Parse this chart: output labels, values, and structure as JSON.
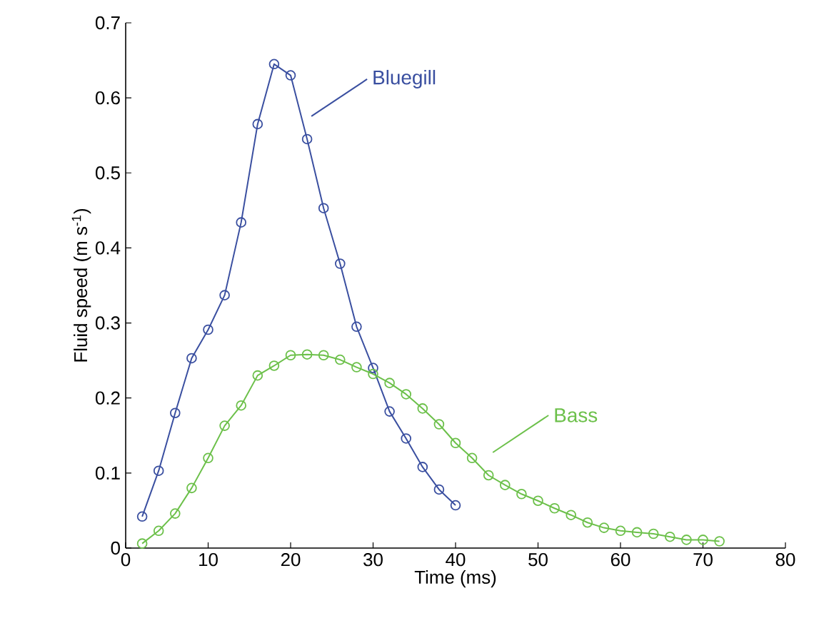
{
  "chart_data": {
    "type": "line",
    "xlabel": "Time (ms)",
    "ylabel": "Fluid speed (m s$^{-1}$)",
    "xlim": [
      0,
      80
    ],
    "ylim": [
      0,
      0.7
    ],
    "xticks": [
      0,
      10,
      20,
      30,
      40,
      50,
      60,
      70,
      80
    ],
    "yticks": [
      0,
      0.1,
      0.2,
      0.3,
      0.4,
      0.5,
      0.6,
      0.7
    ],
    "grid": false,
    "legend": false,
    "marker": "circle",
    "line_style": "solid",
    "series": [
      {
        "name": "Bluegill",
        "color": "#3a4fa0",
        "x": [
          2,
          4,
          6,
          8,
          10,
          12,
          14,
          16,
          18,
          20,
          22,
          24,
          26,
          28,
          30,
          32,
          34,
          36,
          38,
          40
        ],
        "values": [
          0.042,
          0.103,
          0.18,
          0.253,
          0.291,
          0.337,
          0.434,
          0.565,
          0.645,
          0.63,
          0.545,
          0.453,
          0.379,
          0.295,
          0.24,
          0.182,
          0.146,
          0.108,
          0.078,
          0.057
        ]
      },
      {
        "name": "Bass",
        "color": "#6cc04a",
        "x": [
          2,
          4,
          6,
          8,
          10,
          12,
          14,
          16,
          18,
          20,
          22,
          24,
          26,
          28,
          30,
          32,
          34,
          36,
          38,
          40,
          42,
          44,
          46,
          48,
          50,
          52,
          54,
          56,
          58,
          60,
          62,
          64,
          66,
          68,
          70,
          72
        ],
        "values": [
          0.006,
          0.023,
          0.046,
          0.08,
          0.12,
          0.163,
          0.19,
          0.23,
          0.243,
          0.257,
          0.258,
          0.257,
          0.251,
          0.241,
          0.232,
          0.22,
          0.205,
          0.186,
          0.165,
          0.14,
          0.12,
          0.097,
          0.084,
          0.072,
          0.063,
          0.053,
          0.044,
          0.034,
          0.027,
          0.023,
          0.021,
          0.019,
          0.015,
          0.011,
          0.011,
          0.009
        ]
      }
    ]
  }
}
